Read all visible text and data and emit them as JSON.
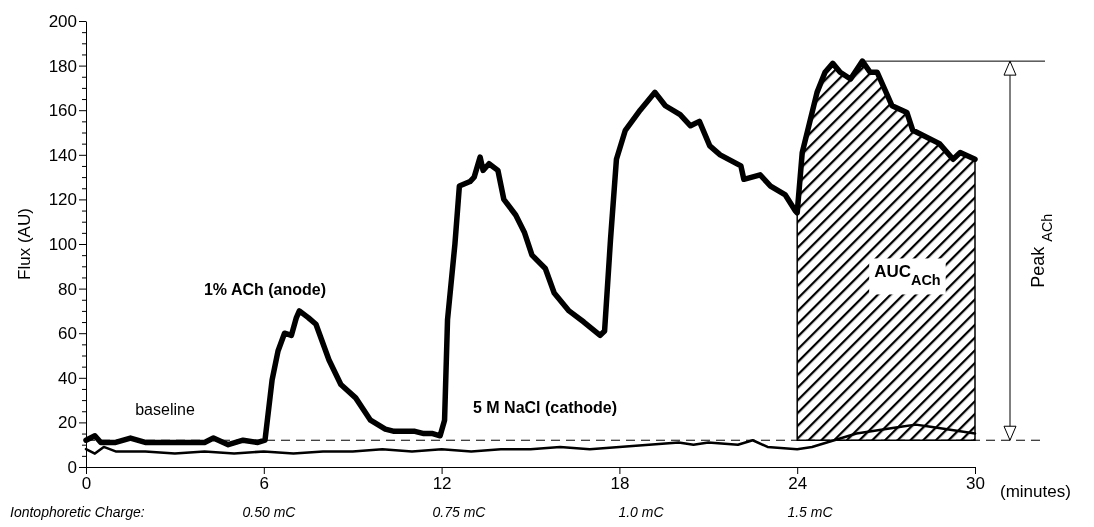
{
  "chart_data": {
    "type": "line",
    "xlabel": "(minutes)",
    "ylabel": "Flux (AU)",
    "xlim": [
      0,
      30
    ],
    "xticks": [
      0,
      6,
      12,
      18,
      24,
      30
    ],
    "ylim": [
      0,
      200
    ],
    "yticks": [
      0,
      {
        "value": 5,
        "label": null
      },
      20,
      {
        "value": 10,
        "label": null
      },
      {
        "value": 15,
        "label": null
      },
      {
        "value": 25,
        "label": null
      },
      {
        "value": 30,
        "label": null
      },
      {
        "value": 35,
        "label": null
      },
      40,
      {
        "value": 45,
        "label": null
      },
      {
        "value": 50,
        "label": null
      },
      {
        "value": 55,
        "label": null
      },
      60,
      {
        "value": 65,
        "label": null
      },
      {
        "value": 70,
        "label": null
      },
      {
        "value": 75,
        "label": null
      },
      80,
      {
        "value": 85,
        "label": null
      },
      {
        "value": 90,
        "label": null
      },
      {
        "value": 95,
        "label": null
      },
      100,
      {
        "value": 105,
        "label": null
      },
      {
        "value": 110,
        "label": null
      },
      {
        "value": 115,
        "label": null
      },
      120,
      {
        "value": 125,
        "label": null
      },
      {
        "value": 130,
        "label": null
      },
      {
        "value": 135,
        "label": null
      },
      140,
      {
        "value": 145,
        "label": null
      },
      {
        "value": 150,
        "label": null
      },
      {
        "value": 155,
        "label": null
      },
      160,
      {
        "value": 165,
        "label": null
      },
      {
        "value": 170,
        "label": null
      },
      {
        "value": 175,
        "label": null
      },
      180,
      {
        "value": 185,
        "label": null
      },
      {
        "value": 190,
        "label": null
      },
      {
        "value": 195,
        "label": null
      },
      200
    ],
    "grid": false,
    "marker": "none",
    "series": [
      {
        "color": "#000000",
        "x": [
          0,
          0.3,
          0.5,
          1.0,
          1.5,
          2.0,
          2.5,
          3.0,
          3.5,
          4.0,
          4.3,
          4.8,
          5.3,
          5.8,
          6.04,
          6.28,
          6.48,
          6.7,
          6.93,
          7.1,
          7.2,
          7.5,
          7.76,
          8.2,
          8.6,
          9.1,
          9.6,
          10.1,
          10.4,
          10.8,
          11.1,
          11.4,
          11.7,
          11.95,
          12.1,
          12.2,
          12.45,
          12.6,
          12.96,
          13.1,
          13.3,
          13.4,
          13.6,
          13.9,
          14.1,
          14.5,
          14.8,
          15.05,
          15.5,
          15.8,
          16.3,
          16.8,
          17.35,
          17.5,
          17.7,
          17.9,
          18.2,
          18.7,
          19.2,
          19.55,
          20.05,
          20.4,
          20.7,
          21.05,
          21.4,
          22.1,
          22.2,
          22.75,
          23.1,
          23.6,
          23.93,
          24.0,
          24.17,
          24.67,
          24.94,
          25.2,
          25.45,
          25.8,
          26.2,
          26.46,
          26.7,
          27.2,
          27.7,
          27.9,
          28.8,
          29.26,
          29.5,
          30
        ],
        "values": [
          12,
          14,
          11,
          11,
          13,
          11,
          11,
          11,
          11,
          11,
          13,
          10,
          12,
          11,
          12,
          39,
          52,
          60,
          59,
          67,
          70,
          67,
          64,
          48,
          37,
          31,
          21,
          17,
          16,
          16,
          16,
          15,
          15,
          14,
          21,
          66,
          100,
          126,
          128,
          130,
          139,
          133,
          136,
          133,
          120,
          113,
          105,
          95,
          89,
          78,
          70,
          65,
          59,
          61,
          102,
          138,
          151,
          160,
          168,
          162,
          158,
          153,
          155,
          144,
          140,
          135,
          129,
          131,
          126,
          122,
          115,
          114,
          141,
          168,
          177,
          181,
          177,
          174,
          182,
          177,
          177,
          162,
          159,
          151,
          145,
          138,
          141,
          138
        ]
      },
      {
        "color": "#000000",
        "x": [
          0,
          0.3,
          0.6,
          1,
          2,
          3,
          4,
          5,
          6,
          7,
          8,
          9,
          10,
          11,
          12,
          13,
          14,
          15,
          16,
          17,
          18,
          19,
          20,
          20.5,
          21,
          22,
          22.5,
          23,
          24,
          24.5,
          25,
          25.5,
          26,
          26.5,
          27,
          27.5,
          28,
          28.5,
          29,
          29.5,
          30
        ],
        "values": [
          8,
          6,
          9,
          7,
          7,
          6,
          7,
          6,
          7,
          6,
          7,
          7,
          8,
          7,
          8,
          7,
          8,
          8,
          9,
          8,
          9,
          10,
          11,
          10,
          11,
          10,
          12,
          9,
          8,
          9,
          11,
          13,
          15,
          16,
          17,
          18,
          19,
          18,
          17,
          16,
          15
        ]
      }
    ],
    "ref_lines": [
      {
        "axis": "y",
        "value": 12,
        "line_style": "dashed"
      },
      {
        "axis": "y",
        "value": 182,
        "line_style": "solid"
      }
    ],
    "bands": [
      {
        "axis": "x",
        "from": 24,
        "to": 30,
        "label": "AUC$_{ACh}$"
      }
    ],
    "annotations": [
      "Iontophoretic Charge:",
      "Peak $_{ACh}$",
      "1% ACh (anode)",
      "baseline",
      "5 M NaCl (cathode)",
      "0.50 mC",
      "0.75 mC",
      "1.0 mC",
      "1.5 mC"
    ]
  }
}
